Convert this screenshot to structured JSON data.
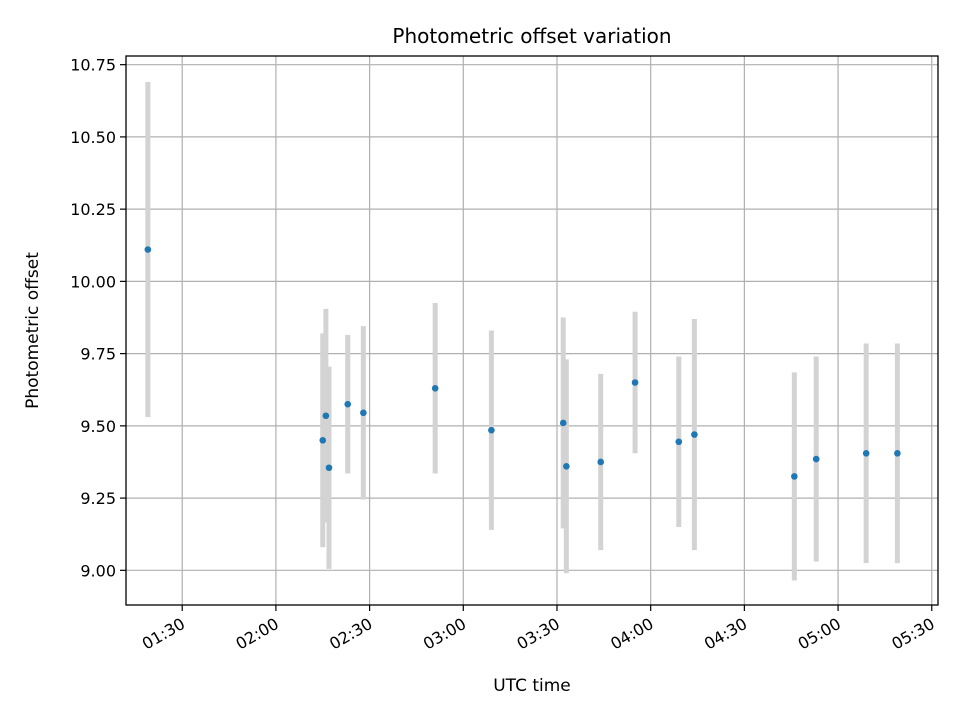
{
  "chart_data": {
    "type": "scatter",
    "title": "Photometric offset variation",
    "xlabel": "UTC time",
    "ylabel": "Photometric offset",
    "x_unit": "time (HH:MM)",
    "xlim": [
      "01:12",
      "05:32"
    ],
    "ylim": [
      8.88,
      10.78
    ],
    "x_ticks": [
      "01:30",
      "02:00",
      "02:30",
      "03:00",
      "03:30",
      "04:00",
      "04:30",
      "05:00",
      "05:30"
    ],
    "y_ticks": [
      "9.00",
      "9.25",
      "9.50",
      "9.75",
      "10.00",
      "10.25",
      "10.50",
      "10.75"
    ],
    "grid": true,
    "point_color": "#1f77b4",
    "errorbar_color": "#d3d3d3",
    "points": [
      {
        "x": "01:19",
        "y": 10.11,
        "err": 0.58
      },
      {
        "x": "02:15",
        "y": 9.45,
        "err": 0.37
      },
      {
        "x": "02:16",
        "y": 9.535,
        "err": 0.37
      },
      {
        "x": "02:17",
        "y": 9.355,
        "err": 0.35
      },
      {
        "x": "02:23",
        "y": 9.575,
        "err": 0.24
      },
      {
        "x": "02:28",
        "y": 9.545,
        "err": 0.3
      },
      {
        "x": "02:51",
        "y": 9.63,
        "err": 0.295
      },
      {
        "x": "03:09",
        "y": 9.485,
        "err": 0.345
      },
      {
        "x": "03:32",
        "y": 9.51,
        "err": 0.365
      },
      {
        "x": "03:33",
        "y": 9.36,
        "err": 0.37
      },
      {
        "x": "03:44",
        "y": 9.375,
        "err": 0.305
      },
      {
        "x": "03:55",
        "y": 9.65,
        "err": 0.245
      },
      {
        "x": "04:09",
        "y": 9.445,
        "err": 0.295
      },
      {
        "x": "04:14",
        "y": 9.47,
        "err": 0.4
      },
      {
        "x": "04:46",
        "y": 9.325,
        "err": 0.36
      },
      {
        "x": "04:53",
        "y": 9.385,
        "err": 0.355
      },
      {
        "x": "05:09",
        "y": 9.405,
        "err": 0.38
      },
      {
        "x": "05:19",
        "y": 9.405,
        "err": 0.38
      }
    ]
  }
}
